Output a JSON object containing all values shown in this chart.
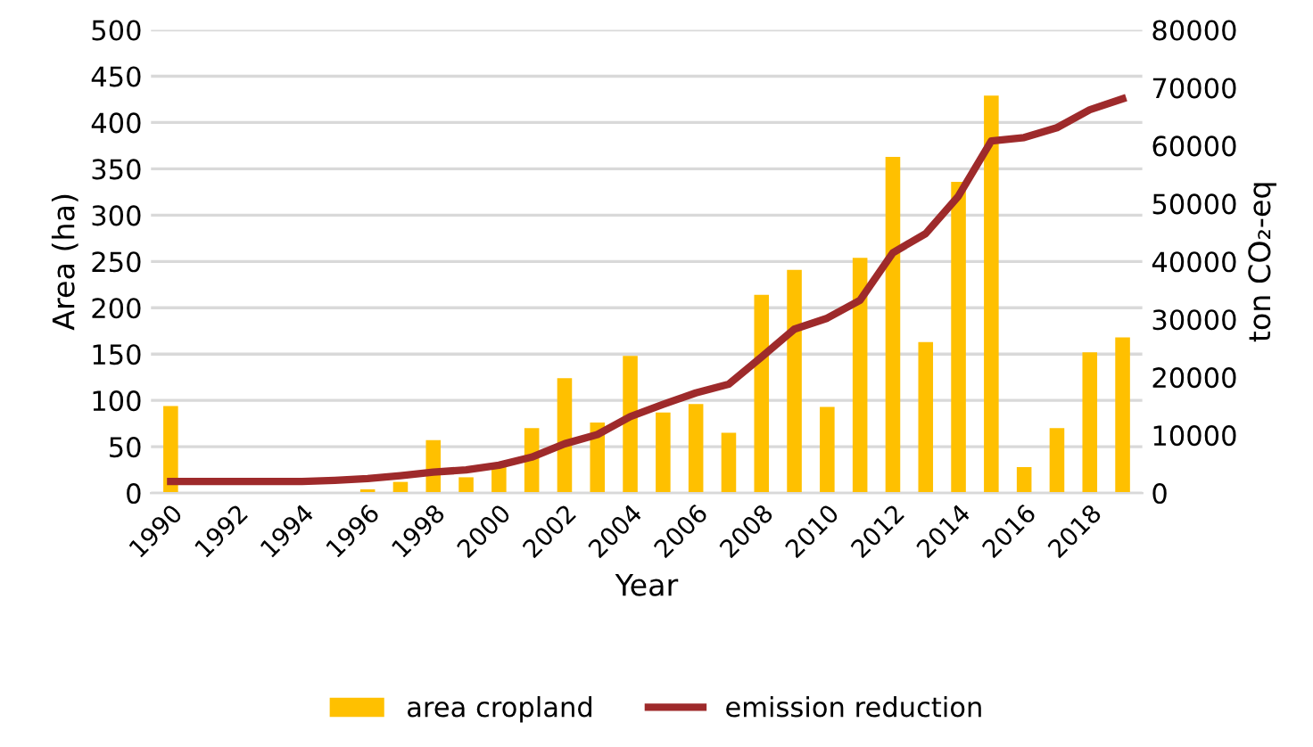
{
  "chart_data": {
    "type": "bar",
    "xlabel": "Year",
    "ylabel": "Area (ha)",
    "y2label": "ton CO₂-eq",
    "categories": [
      "1990",
      null,
      "1992",
      null,
      "1994",
      null,
      "1996",
      null,
      "1998",
      null,
      "2000",
      null,
      "2002",
      null,
      "2004",
      null,
      "2006",
      null,
      "2008",
      null,
      "2010",
      null,
      "2012",
      null,
      "2014",
      null,
      "2016",
      null,
      "2018",
      null
    ],
    "series": [
      {
        "name": "area cropland",
        "color": "#ffc000",
        "values": [
          94,
          0,
          0,
          0,
          0,
          0,
          4,
          12,
          57,
          17,
          28,
          70,
          124,
          76,
          148,
          87,
          96,
          65,
          214,
          241,
          93,
          254,
          363,
          163,
          336,
          429,
          28,
          70,
          152,
          168
        ]
      },
      {
        "name": "emission reduction",
        "type": "line",
        "axis": "y2",
        "color": "#9e2a2b",
        "values": [
          2000,
          2000,
          2000,
          2000,
          2000,
          2200,
          2500,
          3000,
          3600,
          4000,
          4800,
          6200,
          8500,
          10100,
          13200,
          15300,
          17300,
          18800,
          23500,
          28300,
          30200,
          33300,
          41500,
          44800,
          51300,
          60800,
          61400,
          63100,
          66200,
          68100
        ]
      }
    ],
    "ylim": [
      0,
      500
    ],
    "yticks": [
      0,
      50,
      100,
      150,
      200,
      250,
      300,
      350,
      400,
      450,
      500
    ],
    "y2lim": [
      0,
      80000
    ],
    "y2ticks": [
      0,
      10000,
      20000,
      30000,
      40000,
      50000,
      60000,
      70000,
      80000
    ],
    "grid": "y",
    "legend": "bottom"
  }
}
